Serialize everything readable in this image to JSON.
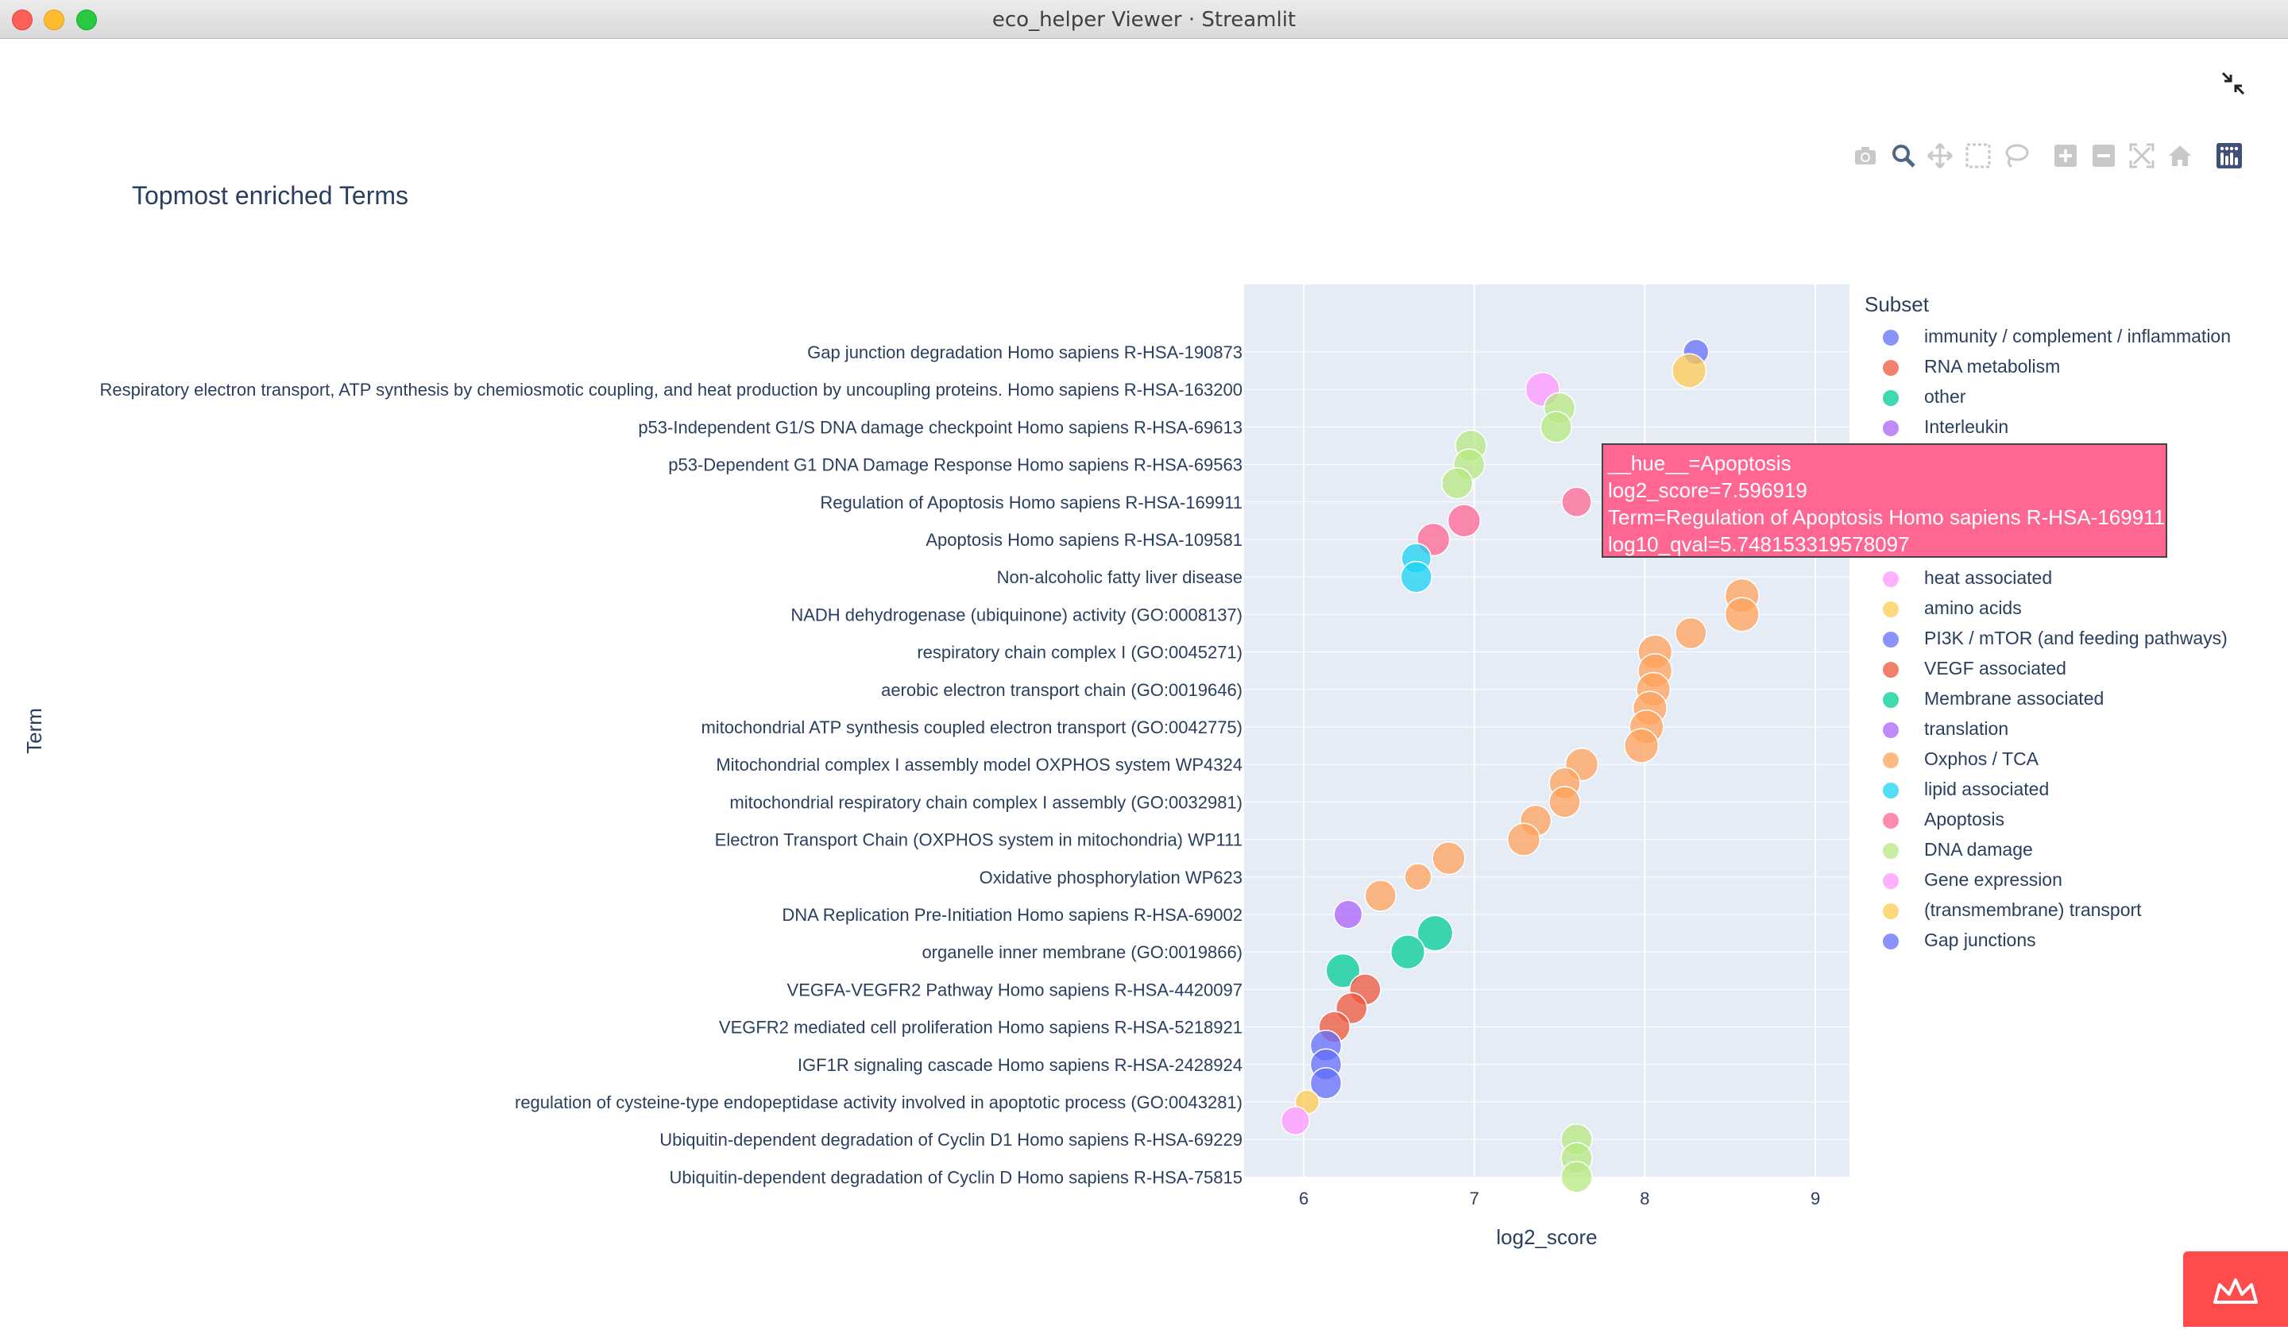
{
  "window": {
    "title": "eco_helper Viewer · Streamlit"
  },
  "modebar": {
    "icons": [
      "camera-icon",
      "zoom-icon",
      "pan-icon",
      "box-select-icon",
      "lasso-select-icon",
      "zoom-in-icon",
      "zoom-out-icon",
      "autoscale-icon",
      "reset-axes-icon",
      "plotly-logo-icon"
    ]
  },
  "chart_data": {
    "type": "scatter",
    "title": "Topmost enriched Terms",
    "xlabel": "log2_score",
    "ylabel": "Term",
    "xlim": [
      5.65,
      9.2
    ],
    "xticks": [
      6,
      7,
      8,
      9
    ],
    "grid": true,
    "legend_title": "Subset",
    "legend_position": "right",
    "categories": [
      "Gap junction degradation Homo sapiens R-HSA-190873",
      "Respiratory electron transport, ATP synthesis by chemiosmotic coupling, and heat production by uncoupling proteins. Homo sapiens R-HSA-163200",
      "p53-Independent G1/S DNA damage checkpoint Homo sapiens R-HSA-69613",
      "p53-Dependent G1 DNA Damage Response Homo sapiens R-HSA-69563",
      "Regulation of Apoptosis Homo sapiens R-HSA-169911",
      "Apoptosis Homo sapiens R-HSA-109581",
      "Non-alcoholic fatty liver disease",
      "NADH dehydrogenase (ubiquinone) activity (GO:0008137)",
      "respiratory chain complex I (GO:0045271)",
      "aerobic electron transport chain (GO:0019646)",
      "mitochondrial ATP synthesis coupled electron transport (GO:0042775)",
      "Mitochondrial complex I assembly model OXPHOS system WP4324",
      "mitochondrial respiratory chain complex I assembly (GO:0032981)",
      "Electron Transport Chain (OXPHOS system in mitochondria) WP111",
      "Oxidative phosphorylation WP623",
      "DNA Replication Pre-Initiation Homo sapiens R-HSA-69002",
      "organelle inner membrane (GO:0019866)",
      "VEGFA-VEGFR2 Pathway Homo sapiens R-HSA-4420097",
      "VEGFR2 mediated cell proliferation Homo sapiens R-HSA-5218921",
      "IGF1R signaling cascade Homo sapiens R-HSA-2428924",
      "regulation of cysteine-type endopeptidase activity involved in apoptotic process (GO:0043281)",
      "Ubiquitin-dependent degradation of Cyclin D1 Homo sapiens R-HSA-69229",
      "Ubiquitin-dependent degradation of Cyclin D Homo sapiens R-HSA-75815"
    ],
    "legend": [
      {
        "name": "immunity / complement / inflammation",
        "color": "#636efa"
      },
      {
        "name": "RNA metabolism",
        "color": "#ef553b"
      },
      {
        "name": "other",
        "color": "#00cc96"
      },
      {
        "name": "Interleukin",
        "color": "#ab63fa"
      },
      {
        "name": "heat associated",
        "color": "#ff97ff"
      },
      {
        "name": "amino acids",
        "color": "#fecb52"
      },
      {
        "name": "PI3K / mTOR (and feeding pathways)",
        "color": "#636efa"
      },
      {
        "name": "VEGF associated",
        "color": "#ef553b"
      },
      {
        "name": "Membrane associated",
        "color": "#00cc96"
      },
      {
        "name": "translation",
        "color": "#ab63fa"
      },
      {
        "name": "Oxphos / TCA",
        "color": "#ffa15a"
      },
      {
        "name": "lipid associated",
        "color": "#19d3f3"
      },
      {
        "name": "Apoptosis",
        "color": "#ff6692"
      },
      {
        "name": "DNA damage",
        "color": "#b6e880"
      },
      {
        "name": "Gene expression",
        "color": "#ff97ff"
      },
      {
        "name": "(transmembrane) transport",
        "color": "#fecb52"
      },
      {
        "name": "Gap junctions",
        "color": "#636efa"
      }
    ],
    "points": [
      {
        "x": 8.3,
        "y": 0.0,
        "color": "#636efa",
        "size": 0.55
      },
      {
        "x": 8.26,
        "y": 0.5,
        "color": "#fecb52",
        "size": 0.85
      },
      {
        "x": 7.4,
        "y": 1.0,
        "color": "#ff97ff",
        "size": 0.85
      },
      {
        "x": 7.5,
        "y": 1.5,
        "color": "#b6e880",
        "size": 0.75
      },
      {
        "x": 7.48,
        "y": 2.0,
        "color": "#b6e880",
        "size": 0.75
      },
      {
        "x": 6.98,
        "y": 2.5,
        "color": "#b6e880",
        "size": 0.75
      },
      {
        "x": 6.97,
        "y": 3.0,
        "color": "#b6e880",
        "size": 0.75
      },
      {
        "x": 6.9,
        "y": 3.5,
        "color": "#b6e880",
        "size": 0.75
      },
      {
        "x": 7.6,
        "y": 4.0,
        "color": "#ff6692",
        "size": 0.7
      },
      {
        "x": 6.94,
        "y": 4.5,
        "color": "#ff6692",
        "size": 0.8
      },
      {
        "x": 6.76,
        "y": 5.0,
        "color": "#ff6692",
        "size": 0.8
      },
      {
        "x": 6.66,
        "y": 5.5,
        "color": "#19d3f3",
        "size": 0.7
      },
      {
        "x": 6.66,
        "y": 6.0,
        "color": "#19d3f3",
        "size": 0.75
      },
      {
        "x": 8.57,
        "y": 6.5,
        "color": "#ffa15a",
        "size": 0.85
      },
      {
        "x": 8.57,
        "y": 7.0,
        "color": "#ffa15a",
        "size": 0.85
      },
      {
        "x": 8.27,
        "y": 7.5,
        "color": "#ffa15a",
        "size": 0.75
      },
      {
        "x": 8.06,
        "y": 8.0,
        "color": "#ffa15a",
        "size": 0.85
      },
      {
        "x": 8.06,
        "y": 8.5,
        "color": "#ffa15a",
        "size": 0.85
      },
      {
        "x": 8.05,
        "y": 9.0,
        "color": "#ffa15a",
        "size": 0.85
      },
      {
        "x": 8.03,
        "y": 9.5,
        "color": "#ffa15a",
        "size": 0.85
      },
      {
        "x": 8.01,
        "y": 10.0,
        "color": "#ffa15a",
        "size": 0.85
      },
      {
        "x": 7.98,
        "y": 10.5,
        "color": "#ffa15a",
        "size": 0.85
      },
      {
        "x": 7.63,
        "y": 11.0,
        "color": "#ffa15a",
        "size": 0.8
      },
      {
        "x": 7.53,
        "y": 11.5,
        "color": "#ffa15a",
        "size": 0.75
      },
      {
        "x": 7.53,
        "y": 12.0,
        "color": "#ffa15a",
        "size": 0.75
      },
      {
        "x": 7.36,
        "y": 12.5,
        "color": "#ffa15a",
        "size": 0.75
      },
      {
        "x": 7.29,
        "y": 13.0,
        "color": "#ffa15a",
        "size": 0.8
      },
      {
        "x": 6.85,
        "y": 13.5,
        "color": "#ffa15a",
        "size": 0.8
      },
      {
        "x": 6.67,
        "y": 14.0,
        "color": "#ffa15a",
        "size": 0.6
      },
      {
        "x": 6.45,
        "y": 14.5,
        "color": "#ffa15a",
        "size": 0.75
      },
      {
        "x": 6.26,
        "y": 15.0,
        "color": "#ab63fa",
        "size": 0.65
      },
      {
        "x": 6.77,
        "y": 15.5,
        "color": "#00cc96",
        "size": 0.9
      },
      {
        "x": 6.61,
        "y": 16.0,
        "color": "#00cc96",
        "size": 0.85
      },
      {
        "x": 6.23,
        "y": 16.5,
        "color": "#00cc96",
        "size": 0.85
      },
      {
        "x": 6.36,
        "y": 17.0,
        "color": "#ef553b",
        "size": 0.75
      },
      {
        "x": 6.28,
        "y": 17.5,
        "color": "#ef553b",
        "size": 0.75
      },
      {
        "x": 6.18,
        "y": 18.0,
        "color": "#ef553b",
        "size": 0.75
      },
      {
        "x": 6.13,
        "y": 18.5,
        "color": "#636efa",
        "size": 0.75
      },
      {
        "x": 6.13,
        "y": 19.0,
        "color": "#636efa",
        "size": 0.75
      },
      {
        "x": 6.13,
        "y": 19.5,
        "color": "#636efa",
        "size": 0.75
      },
      {
        "x": 6.02,
        "y": 20.0,
        "color": "#fecb52",
        "size": 0.5
      },
      {
        "x": 5.95,
        "y": 20.5,
        "color": "#ff97ff",
        "size": 0.65
      },
      {
        "x": 7.6,
        "y": 21.0,
        "color": "#b6e880",
        "size": 0.75
      },
      {
        "x": 7.6,
        "y": 21.5,
        "color": "#b6e880",
        "size": 0.75
      },
      {
        "x": 7.6,
        "y": 22.0,
        "color": "#b6e880",
        "size": 0.75
      }
    ]
  },
  "hover": {
    "lines": [
      "__hue__=Apoptosis",
      "log2_score=7.596919",
      "Term=Regulation of Apoptosis Homo sapiens R-HSA-169911",
      "log10_qval=5.748153319578097"
    ]
  }
}
